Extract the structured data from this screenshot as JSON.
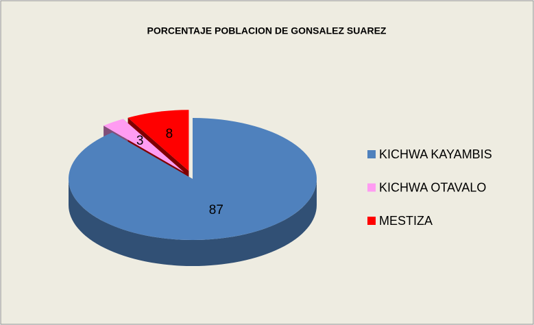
{
  "chart_data": {
    "type": "pie",
    "title": "PORCENTAJE POBLACION DE GONSALEZ SUAREZ",
    "categories": [
      "KICHWA KAYAMBIS",
      "KICHWA OTAVALO",
      "MESTIZA"
    ],
    "values": [
      87,
      3,
      8
    ],
    "colors": [
      "#4f81bd",
      "#ff9cf2",
      "#ff0000"
    ],
    "legend": "right"
  }
}
